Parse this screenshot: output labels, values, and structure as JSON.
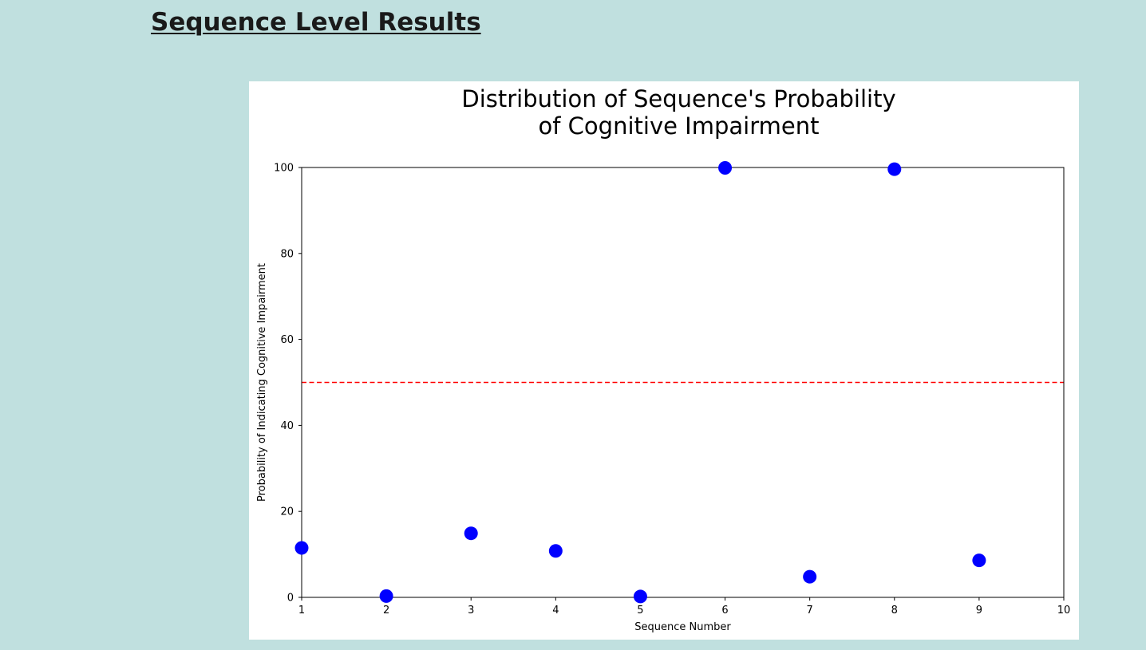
{
  "page": {
    "heading": "Sequence Level Results"
  },
  "chart_data": {
    "type": "scatter",
    "title_lines": [
      "Distribution of Sequence's Probability",
      "of Cognitive Impairment"
    ],
    "xlabel": "Sequence Number",
    "ylabel": "Probability of Indicating Cognitive Impairment",
    "xlim": [
      1,
      10
    ],
    "ylim": [
      0,
      100
    ],
    "xticks": [
      1,
      2,
      3,
      4,
      5,
      6,
      7,
      8,
      9,
      10
    ],
    "yticks": [
      0,
      20,
      40,
      60,
      80,
      100
    ],
    "grid": false,
    "legend": "none",
    "threshold": {
      "y": 50,
      "color": "#ff0000",
      "style": "dashed"
    },
    "marker_color": "#0000ff",
    "points": [
      {
        "x": 1,
        "y": 11.5
      },
      {
        "x": 2,
        "y": 0.3
      },
      {
        "x": 3,
        "y": 14.9
      },
      {
        "x": 4,
        "y": 10.8
      },
      {
        "x": 5,
        "y": 0.2
      },
      {
        "x": 6,
        "y": 99.9
      },
      {
        "x": 7,
        "y": 4.8
      },
      {
        "x": 8,
        "y": 99.6
      },
      {
        "x": 9,
        "y": 8.6
      }
    ]
  }
}
